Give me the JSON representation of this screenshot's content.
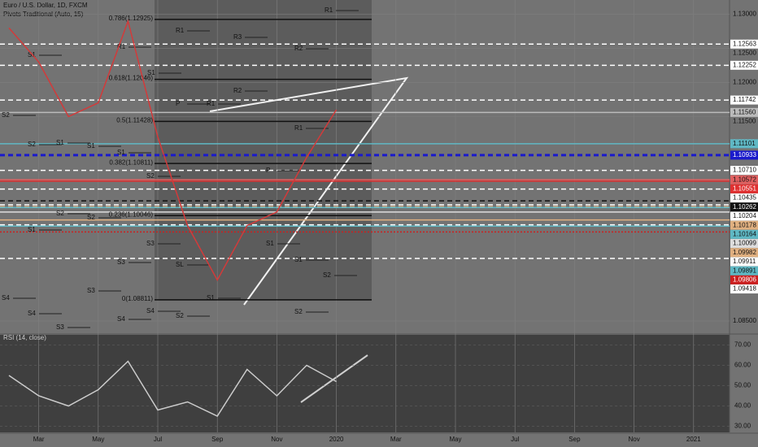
{
  "chart_data": [
    {
      "type": "line",
      "title": "Euro / U.S. Dollar, 1D, FXCM",
      "subtitle": "Pivots Traditional (Auto, 15)",
      "categories": [
        null,
        "Mar",
        null,
        "May",
        null,
        "Jul",
        null,
        "Sep",
        null,
        "Nov",
        null,
        "2020",
        null,
        "Mar",
        null,
        "May",
        null,
        "Jul",
        null,
        "Sep",
        null,
        "Nov",
        null,
        "2021"
      ],
      "values": [
        1.128,
        1.123,
        1.115,
        1.117,
        1.129,
        1.112,
        1.099,
        1.091,
        1.099,
        1.101,
        1.109,
        1.116,
        null,
        null,
        null,
        null,
        null,
        null,
        null,
        null,
        null,
        null,
        null,
        null
      ],
      "color": "#d33a3a",
      "ylim": [
        1.0832,
        1.1321
      ],
      "yticks": [
        {
          "value": 1.13,
          "label": "1.13000"
        },
        {
          "value": 1.125,
          "label": "1.12500"
        },
        {
          "value": 1.12,
          "label": "1.12000"
        },
        {
          "value": 1.115,
          "label": "1.11500"
        },
        {
          "value": 1.085,
          "label": "1.08500"
        }
      ],
      "grid": true,
      "price_levels": [
        {
          "value": 1.12563,
          "label": "1.12563",
          "color": "#ffffff",
          "style": "dashed"
        },
        {
          "value": 1.12252,
          "label": "1.12252",
          "color": "#ffffff",
          "style": "dashed"
        },
        {
          "value": 1.11742,
          "label": "1.11742",
          "color": "#ffffff",
          "style": "dashed"
        },
        {
          "value": 1.1156,
          "label": "1.11560",
          "color": "#bbbbbb",
          "style": "solid"
        },
        {
          "value": 1.11101,
          "label": "1.11101",
          "color": "#5fb8c4",
          "style": "solid"
        },
        {
          "value": 1.10933,
          "label": "1.10933",
          "color": "#1a1acc",
          "style": "dashed"
        },
        {
          "value": 1.1071,
          "label": "1.10710",
          "color": "#ffffff",
          "style": "dashed"
        },
        {
          "value": 1.10572,
          "label": "1.10572",
          "color": "#e06060",
          "style": "solid"
        },
        {
          "value": 1.10551,
          "label": "1.10551",
          "color": "#e03030",
          "style": "solid"
        },
        {
          "value": 1.10435,
          "label": "1.10435",
          "color": "#ffffff",
          "style": "dashed"
        },
        {
          "value": 1.10262,
          "label": "1.10262",
          "color": "#111111",
          "style": "dashed"
        },
        {
          "value": 1.10204,
          "label": "1.10204",
          "color": "#ffffff",
          "style": "dashed"
        },
        {
          "value": 1.10178,
          "label": "1.10178",
          "color": "#e0b080",
          "style": "dashed"
        },
        {
          "value": 1.10164,
          "label": "1.10164",
          "color": "#5fb8c4",
          "style": "solid"
        },
        {
          "value": 1.10099,
          "label": "1.10099",
          "color": "#dddddd",
          "style": "solid"
        },
        {
          "value": 1.09982,
          "label": "1.09982",
          "color": "#e0b080",
          "style": "solid"
        },
        {
          "value": 1.09911,
          "label": "1.09911",
          "color": "#ffffff",
          "style": "dashed"
        },
        {
          "value": 1.09891,
          "label": "1.09891",
          "color": "#5fb8c4",
          "style": "solid"
        },
        {
          "value": 1.09806,
          "label": "1.09806",
          "color": "#cc2020",
          "style": "dotted"
        },
        {
          "value": 1.09418,
          "label": "1.09418",
          "color": "#ffffff",
          "style": "dashed"
        }
      ],
      "fib_levels": [
        {
          "value": 1.12925,
          "label": "0.786(1.12925)"
        },
        {
          "value": 1.12046,
          "label": "0.618(1.12046)"
        },
        {
          "value": 1.11428,
          "label": "0.5(1.11428)"
        },
        {
          "value": 1.10811,
          "label": "0.382(1.10811)"
        },
        {
          "value": 1.10046,
          "label": "0.236(1.10046)"
        },
        {
          "value": 1.08811,
          "label": "0(1.08811)"
        }
      ],
      "pivot_labels": [
        "R1",
        "R1",
        "R3",
        "R2",
        "S1",
        "R1",
        "S1",
        "R2",
        "P",
        "R1",
        "R1",
        "S1",
        "S2",
        "S2",
        "S1",
        "S1",
        "S2",
        "P",
        "S2",
        "S2",
        "S1",
        "S3",
        "S1",
        "S3",
        "S1",
        "S2",
        "SL",
        "S4",
        "S3",
        "S4",
        "S4",
        "S1",
        "S2",
        "S2",
        "S3",
        "S4"
      ]
    },
    {
      "type": "line",
      "title": "RSI (14, close)",
      "values": [
        55,
        45,
        40,
        48,
        62,
        38,
        42,
        35,
        58,
        45,
        60,
        52,
        null,
        null,
        null,
        null,
        null,
        null,
        null,
        null,
        null,
        null,
        null,
        null
      ],
      "color": "#cccccc",
      "ylim": [
        27,
        75
      ],
      "yticks": [
        {
          "value": 70,
          "label": "70.00"
        },
        {
          "value": 60,
          "label": "60.00"
        },
        {
          "value": 50,
          "label": "50.00"
        },
        {
          "value": 40,
          "label": "40.00"
        },
        {
          "value": 30,
          "label": "30.00"
        }
      ]
    }
  ]
}
